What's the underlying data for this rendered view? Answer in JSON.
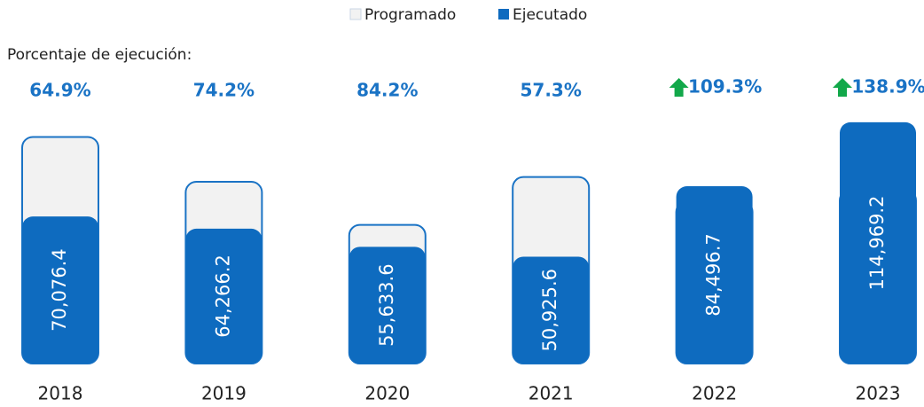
{
  "chart_data": {
    "type": "bar",
    "categories": [
      "2018",
      "2019",
      "2020",
      "2021",
      "2022",
      "2023"
    ],
    "series": [
      {
        "name": "Programado",
        "color": "#f2f2f2",
        "stroke": "#1a73c5",
        "values": [
          107976,
          86612,
          66073,
          88876,
          77307,
          82771
        ]
      },
      {
        "name": "Ejecutado",
        "color": "#0e6bbf",
        "values": [
          70076.4,
          64266.2,
          55633.6,
          50925.6,
          84496.7,
          114969.2
        ],
        "value_labels": [
          "70,076.4",
          "64,266.2",
          "55,633.6",
          "50,925.6",
          "84,496.7",
          "114,969.2"
        ]
      }
    ],
    "execution_rate": {
      "name": "Porcentaje de ejecución:",
      "color": "#1a73c5",
      "arrow_color": "#12a84a",
      "values": [
        64.9,
        74.2,
        84.2,
        57.3,
        109.3,
        138.9
      ],
      "value_labels": [
        "64.9%",
        "74.2%",
        "84.2%",
        "57.3%",
        "109.3%",
        "138.9%"
      ]
    },
    "ylim": [
      0,
      120000
    ],
    "legend": "top"
  }
}
